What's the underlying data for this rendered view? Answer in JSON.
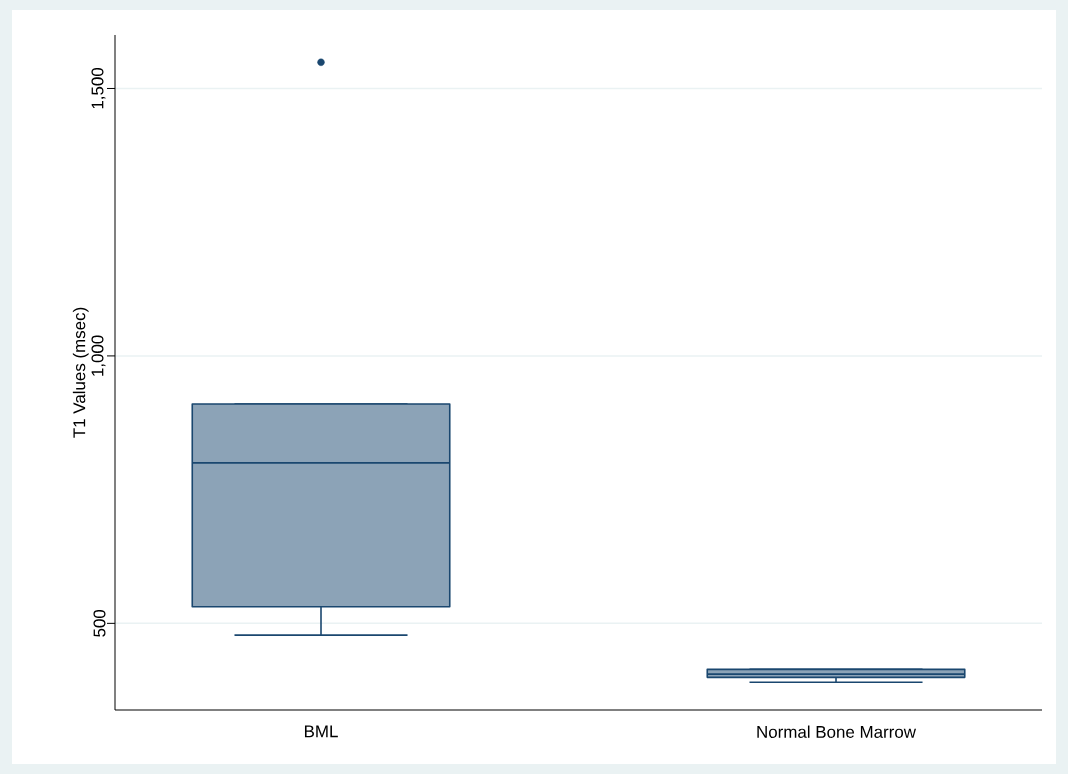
{
  "chart_data": {
    "type": "box",
    "ylabel": "T1 Values (msec)",
    "categories": [
      "BML",
      "Normal Bone Marrow"
    ],
    "series": [
      {
        "color": "#1a476f",
        "boxes": [
          {
            "low": 478,
            "q1": 531,
            "median": 800,
            "q3": 910,
            "high": 910,
            "outliers": [
              1549
            ]
          },
          {
            "low": 390,
            "q1": 399,
            "median": 405,
            "q3": 414,
            "high": 414
          }
        ]
      }
    ],
    "ylim": [
      338,
      1600
    ],
    "yticks": [
      {
        "value": 500,
        "label": "500"
      },
      {
        "value": 1000,
        "label": "1,000"
      },
      {
        "value": 1500,
        "label": "1,500"
      }
    ],
    "grid": "y"
  }
}
